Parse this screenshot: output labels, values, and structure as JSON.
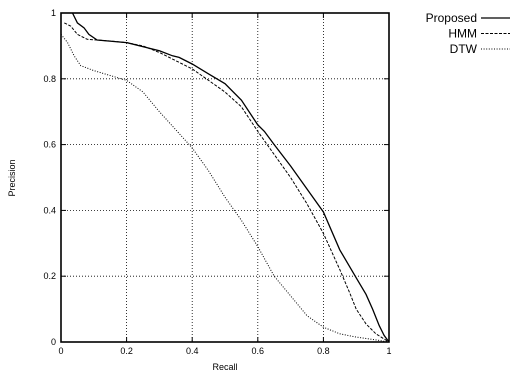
{
  "chart_data": {
    "type": "line",
    "title": "",
    "xlabel": "Recall",
    "ylabel": "Precision",
    "xlim": [
      0,
      1
    ],
    "ylim": [
      0,
      1
    ],
    "x_ticks": [
      "0",
      "0.2",
      "0.4",
      "0.6",
      "0.8",
      "1"
    ],
    "y_ticks": [
      "0",
      "0.2",
      "0.4",
      "0.6",
      "0.8",
      "1"
    ],
    "grid": true,
    "legend_position": "outside-top-right",
    "series": [
      {
        "name": "Proposed",
        "line_style": "solid",
        "points": [
          [
            0.035,
            1.0
          ],
          [
            0.05,
            0.97
          ],
          [
            0.07,
            0.955
          ],
          [
            0.085,
            0.935
          ],
          [
            0.11,
            0.918
          ],
          [
            0.2,
            0.91
          ],
          [
            0.24,
            0.9
          ],
          [
            0.3,
            0.885
          ],
          [
            0.34,
            0.87
          ],
          [
            0.36,
            0.865
          ],
          [
            0.4,
            0.845
          ],
          [
            0.45,
            0.815
          ],
          [
            0.5,
            0.785
          ],
          [
            0.55,
            0.735
          ],
          [
            0.6,
            0.66
          ],
          [
            0.62,
            0.64
          ],
          [
            0.65,
            0.6
          ],
          [
            0.7,
            0.535
          ],
          [
            0.75,
            0.465
          ],
          [
            0.8,
            0.395
          ],
          [
            0.85,
            0.28
          ],
          [
            0.9,
            0.195
          ],
          [
            0.93,
            0.145
          ],
          [
            0.95,
            0.1
          ],
          [
            0.97,
            0.05
          ],
          [
            0.985,
            0.02
          ],
          [
            1.0,
            0.0
          ]
        ]
      },
      {
        "name": "HMM",
        "line_style": "dashed",
        "points": [
          [
            0.01,
            0.97
          ],
          [
            0.02,
            0.965
          ],
          [
            0.03,
            0.96
          ],
          [
            0.05,
            0.935
          ],
          [
            0.08,
            0.92
          ],
          [
            0.15,
            0.915
          ],
          [
            0.2,
            0.91
          ],
          [
            0.25,
            0.9
          ],
          [
            0.3,
            0.88
          ],
          [
            0.35,
            0.855
          ],
          [
            0.4,
            0.83
          ],
          [
            0.45,
            0.795
          ],
          [
            0.5,
            0.76
          ],
          [
            0.55,
            0.715
          ],
          [
            0.6,
            0.64
          ],
          [
            0.65,
            0.57
          ],
          [
            0.7,
            0.5
          ],
          [
            0.75,
            0.42
          ],
          [
            0.8,
            0.33
          ],
          [
            0.85,
            0.22
          ],
          [
            0.88,
            0.15
          ],
          [
            0.9,
            0.1
          ],
          [
            0.93,
            0.055
          ],
          [
            0.96,
            0.025
          ],
          [
            1.0,
            0.0
          ]
        ]
      },
      {
        "name": "DTW",
        "line_style": "dotted",
        "points": [
          [
            0.0,
            0.935
          ],
          [
            0.02,
            0.91
          ],
          [
            0.04,
            0.87
          ],
          [
            0.06,
            0.84
          ],
          [
            0.1,
            0.825
          ],
          [
            0.15,
            0.81
          ],
          [
            0.2,
            0.795
          ],
          [
            0.25,
            0.76
          ],
          [
            0.3,
            0.7
          ],
          [
            0.35,
            0.645
          ],
          [
            0.4,
            0.59
          ],
          [
            0.45,
            0.52
          ],
          [
            0.5,
            0.44
          ],
          [
            0.55,
            0.37
          ],
          [
            0.6,
            0.29
          ],
          [
            0.65,
            0.2
          ],
          [
            0.7,
            0.14
          ],
          [
            0.75,
            0.08
          ],
          [
            0.8,
            0.045
          ],
          [
            0.85,
            0.025
          ],
          [
            0.9,
            0.015
          ],
          [
            0.95,
            0.008
          ],
          [
            1.0,
            0.0
          ]
        ]
      }
    ]
  }
}
